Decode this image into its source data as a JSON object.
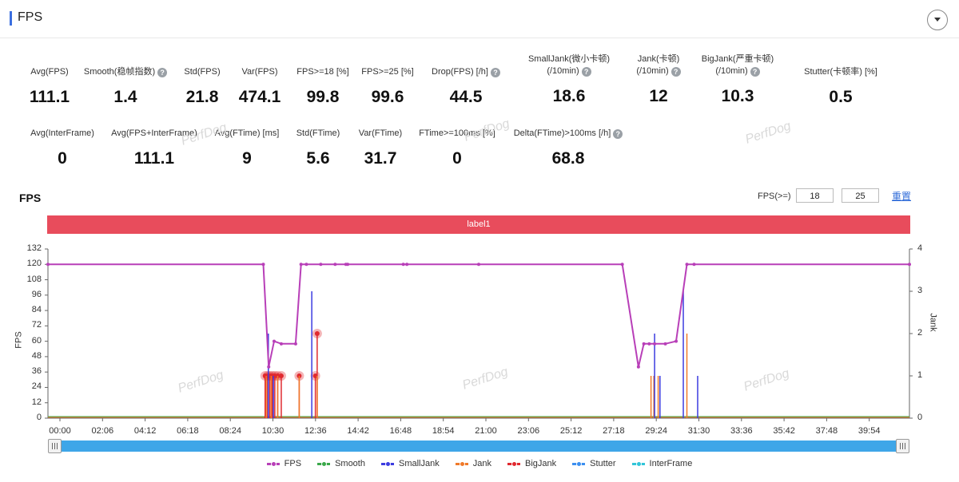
{
  "header": {
    "title": "FPS"
  },
  "stats_row1": [
    {
      "label": "Avg(FPS)",
      "value": "111.1",
      "help": false
    },
    {
      "label": "Smooth(稳帧指数)",
      "value": "1.4",
      "help": true
    },
    {
      "label": "Std(FPS)",
      "value": "21.8",
      "help": false
    },
    {
      "label": "Var(FPS)",
      "value": "474.1",
      "help": false
    },
    {
      "label": "FPS>=18 [%]",
      "value": "99.8",
      "help": false
    },
    {
      "label": "FPS>=25 [%]",
      "value": "99.6",
      "help": false
    },
    {
      "label": "Drop(FPS) [/h]",
      "value": "44.5",
      "help": true
    },
    {
      "label": "SmallJank(微小卡顿)",
      "label2": "(/10min)",
      "value": "18.6",
      "help": true
    },
    {
      "label": "Jank(卡顿)",
      "label2": "(/10min)",
      "value": "12",
      "help": true
    },
    {
      "label": "BigJank(严重卡顿)",
      "label2": "(/10min)",
      "value": "10.3",
      "help": true
    },
    {
      "label": "Stutter(卡顿率) [%]",
      "value": "0.5",
      "help": false
    }
  ],
  "stats_row2": [
    {
      "label": "Avg(InterFrame)",
      "value": "0",
      "help": false
    },
    {
      "label": "Avg(FPS+InterFrame)",
      "value": "111.1",
      "help": false
    },
    {
      "label": "Avg(FTime) [ms]",
      "value": "9",
      "help": false
    },
    {
      "label": "Std(FTime)",
      "value": "5.6",
      "help": false
    },
    {
      "label": "Var(FTime)",
      "value": "31.7",
      "help": false
    },
    {
      "label": "FTime>=100ms [%]",
      "value": "0",
      "help": false
    },
    {
      "label": "Delta(FTime)>100ms [/h]",
      "value": "68.8",
      "help": true
    }
  ],
  "watermark": "PerfDog",
  "chart_section": {
    "title": "FPS",
    "threshold_label": "FPS(>=)",
    "threshold_1": "18",
    "threshold_2": "25",
    "reset_label": "重置",
    "band_label": "label1",
    "y_axis_title": "FPS",
    "y2_axis_title": "Jank",
    "legend": [
      {
        "name": "FPS",
        "color": "#b83fb8"
      },
      {
        "name": "Smooth",
        "color": "#3aa84a"
      },
      {
        "name": "SmallJank",
        "color": "#3c3ce0"
      },
      {
        "name": "Jank",
        "color": "#f07a2a"
      },
      {
        "name": "BigJank",
        "color": "#e0292f"
      },
      {
        "name": "Stutter",
        "color": "#3b8ff0"
      },
      {
        "name": "InterFrame",
        "color": "#31c5d9"
      }
    ]
  },
  "chart_data": {
    "type": "line",
    "title": "",
    "xlabel": "",
    "ylabel": "FPS",
    "y2label": "Jank",
    "ylim": [
      0,
      132
    ],
    "y2lim": [
      0,
      4
    ],
    "yticks": [
      0,
      12,
      24,
      36,
      48,
      60,
      72,
      84,
      96,
      108,
      120,
      132
    ],
    "y2ticks": [
      0,
      1,
      2,
      3,
      4
    ],
    "xticks": [
      "00:00",
      "02:06",
      "04:12",
      "06:18",
      "08:24",
      "10:30",
      "12:36",
      "14:42",
      "16:48",
      "18:54",
      "21:00",
      "23:06",
      "25:12",
      "27:18",
      "29:24",
      "31:30",
      "33:36",
      "35:42",
      "37:48",
      "39:54"
    ],
    "series": [
      {
        "name": "FPS",
        "x": [
          0,
          600,
          615,
          630,
          650,
          690,
          705,
          720,
          760,
          800,
          830,
          835,
          990,
          1000,
          1200,
          1600,
          1645,
          1660,
          1675,
          1690,
          1720,
          1750,
          1780,
          1800,
          2400
        ],
        "values": [
          120,
          120,
          40,
          60,
          58,
          58,
          120,
          120,
          120,
          120,
          120,
          120,
          120,
          120,
          120,
          120,
          40,
          58,
          58,
          58,
          58,
          60,
          120,
          120,
          120
        ]
      },
      {
        "name": "BigJank",
        "x": [
          605,
          612,
          618,
          625,
          632,
          640,
          650,
          700,
          745,
          750
        ],
        "values": [
          1,
          1,
          1,
          1,
          1,
          1,
          1,
          1,
          1,
          2
        ]
      },
      {
        "name": "Jank",
        "x": [
          608,
          622,
          640,
          700,
          750,
          1680,
          1688,
          1700,
          1780
        ],
        "values": [
          1,
          1,
          1,
          1,
          1,
          1,
          1,
          1,
          2
        ]
      },
      {
        "name": "SmallJank",
        "x": [
          614,
          628,
          735,
          1690,
          1705,
          1770,
          1810
        ],
        "values": [
          2,
          1,
          3,
          2,
          1,
          3,
          1
        ]
      }
    ]
  }
}
